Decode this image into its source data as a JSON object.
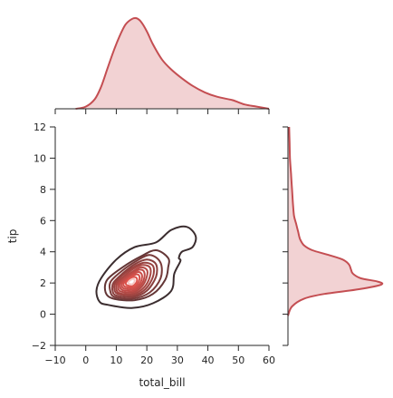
{
  "chart_data": {
    "type": "joint-kde",
    "xlabel": "total_bill",
    "ylabel": "tip",
    "xlim": [
      -10,
      60
    ],
    "ylim": [
      -2,
      12
    ],
    "xticks": [
      -10,
      0,
      10,
      20,
      30,
      40,
      50,
      60
    ],
    "yticks": [
      -2,
      0,
      2,
      4,
      6,
      8,
      10,
      12
    ],
    "grid": false,
    "colors": {
      "outer": "#3b2d2f",
      "inner": "#e8554e",
      "marginal_line": "#c44e52",
      "marginal_fill": "#f2d2d3"
    },
    "joint_kde": {
      "center": [
        15.5,
        2.3
      ],
      "levels": [
        {
          "points": [
            [
              7.2,
              0.6
            ],
            [
              15,
              0.4
            ],
            [
              22,
              0.7
            ],
            [
              28,
              1.5
            ],
            [
              29,
              2.6
            ],
            [
              31,
              3.4
            ],
            [
              30.5,
              3.6
            ],
            [
              31.5,
              4.0
            ],
            [
              35,
              4.3
            ],
            [
              36,
              5.0
            ],
            [
              33,
              5.6
            ],
            [
              28,
              5.4
            ],
            [
              23,
              4.6
            ],
            [
              16,
              4.3
            ],
            [
              10,
              3.5
            ],
            [
              5,
              2.3
            ],
            [
              3.5,
              1.5
            ],
            [
              4.5,
              0.8
            ]
          ]
        },
        {
          "points": [
            [
              9,
              1.0
            ],
            [
              16,
              0.9
            ],
            [
              22,
              1.3
            ],
            [
              26,
              2.2
            ],
            [
              27,
              3.0
            ],
            [
              27,
              3.6
            ],
            [
              23,
              4.1
            ],
            [
              18,
              3.7
            ],
            [
              12,
              3.0
            ],
            [
              7,
              2.2
            ],
            [
              6.5,
              1.4
            ]
          ]
        },
        {
          "points": [
            [
              9.5,
              1.1
            ],
            [
              15.5,
              1.0
            ],
            [
              21,
              1.4
            ],
            [
              24.5,
              2.3
            ],
            [
              24.5,
              3.3
            ],
            [
              21,
              3.8
            ],
            [
              16.5,
              3.4
            ],
            [
              12,
              2.8
            ],
            [
              8.2,
              2.1
            ],
            [
              8,
              1.5
            ]
          ]
        },
        {
          "points": [
            [
              10,
              1.2
            ],
            [
              15.5,
              1.1
            ],
            [
              20,
              1.5
            ],
            [
              23,
              2.4
            ],
            [
              23,
              3.2
            ],
            [
              20,
              3.5
            ],
            [
              16,
              3.2
            ],
            [
              12,
              2.6
            ],
            [
              9,
              2.0
            ],
            [
              8.8,
              1.5
            ]
          ]
        },
        {
          "points": [
            [
              10.5,
              1.3
            ],
            [
              15.5,
              1.2
            ],
            [
              19.5,
              1.6
            ],
            [
              22,
              2.4
            ],
            [
              22,
              3.1
            ],
            [
              19,
              3.3
            ],
            [
              15.5,
              3.0
            ],
            [
              12,
              2.5
            ],
            [
              9.6,
              2.0
            ],
            [
              9.4,
              1.6
            ]
          ]
        },
        {
          "points": [
            [
              11,
              1.35
            ],
            [
              15.5,
              1.3
            ],
            [
              19,
              1.7
            ],
            [
              21,
              2.4
            ],
            [
              21,
              3.0
            ],
            [
              18.5,
              3.15
            ],
            [
              15.5,
              2.9
            ],
            [
              12.3,
              2.4
            ],
            [
              10.2,
              2.0
            ],
            [
              10,
              1.65
            ]
          ]
        },
        {
          "points": [
            [
              11.5,
              1.45
            ],
            [
              15.5,
              1.4
            ],
            [
              18.5,
              1.8
            ],
            [
              20,
              2.4
            ],
            [
              20,
              2.85
            ],
            [
              18,
              3.0
            ],
            [
              15.5,
              2.75
            ],
            [
              12.7,
              2.35
            ],
            [
              10.8,
              2.0
            ],
            [
              10.6,
              1.7
            ]
          ]
        },
        {
          "points": [
            [
              12,
              1.55
            ],
            [
              15.5,
              1.5
            ],
            [
              18,
              1.85
            ],
            [
              19.2,
              2.35
            ],
            [
              19,
              2.75
            ],
            [
              17.5,
              2.85
            ],
            [
              15.5,
              2.65
            ],
            [
              13,
              2.3
            ],
            [
              11.3,
              2.0
            ],
            [
              11.2,
              1.75
            ]
          ]
        },
        {
          "points": [
            [
              12.5,
              1.65
            ],
            [
              15.5,
              1.6
            ],
            [
              17.5,
              1.9
            ],
            [
              18.4,
              2.3
            ],
            [
              18.2,
              2.6
            ],
            [
              17,
              2.7
            ],
            [
              15.5,
              2.55
            ],
            [
              13.4,
              2.25
            ],
            [
              11.9,
              2.0
            ],
            [
              11.8,
              1.8
            ]
          ]
        },
        {
          "points": [
            [
              13,
              1.75
            ],
            [
              15.5,
              1.7
            ],
            [
              17,
              1.95
            ],
            [
              17.6,
              2.25
            ],
            [
              17.4,
              2.5
            ],
            [
              16.5,
              2.55
            ],
            [
              15.3,
              2.45
            ],
            [
              13.8,
              2.2
            ],
            [
              12.5,
              2.0
            ],
            [
              12.4,
              1.85
            ]
          ]
        },
        {
          "points": [
            [
              13.6,
              1.85
            ],
            [
              15.3,
              1.8
            ],
            [
              16.5,
              2.0
            ],
            [
              16.8,
              2.2
            ],
            [
              16.5,
              2.35
            ],
            [
              15.5,
              2.38
            ],
            [
              14.5,
              2.3
            ],
            [
              13.4,
              2.1
            ],
            [
              13.1,
              1.95
            ]
          ]
        },
        {
          "points": [
            [
              14.2,
              1.95
            ],
            [
              15.2,
              1.92
            ],
            [
              15.9,
              2.05
            ],
            [
              16,
              2.18
            ],
            [
              15.6,
              2.26
            ],
            [
              14.9,
              2.22
            ],
            [
              14.2,
              2.12
            ],
            [
              13.9,
              2.02
            ]
          ]
        }
      ]
    },
    "marginal_x": {
      "x": [
        -3.3,
        0,
        3,
        5,
        7,
        9,
        11,
        13,
        15,
        16.5,
        18,
        20,
        22,
        25,
        28,
        31,
        35,
        39,
        43,
        48,
        52,
        56,
        60
      ],
      "density": [
        0,
        0.002,
        0.009,
        0.02,
        0.036,
        0.052,
        0.066,
        0.077,
        0.082,
        0.083,
        0.08,
        0.071,
        0.059,
        0.045,
        0.036,
        0.029,
        0.021,
        0.015,
        0.011,
        0.008,
        0.004,
        0.002,
        0
      ]
    },
    "marginal_y": {
      "y": [
        -0.1,
        0.5,
        1.0,
        1.3,
        1.6,
        1.9,
        2.1,
        2.3,
        2.6,
        2.9,
        3.2,
        3.5,
        3.8,
        4.1,
        4.4,
        4.8,
        5.3,
        5.8,
        6.3,
        7.0,
        8.0,
        9.0,
        10.0,
        11.0,
        12.0
      ],
      "density": [
        0,
        0.02,
        0.08,
        0.18,
        0.35,
        0.46,
        0.44,
        0.36,
        0.32,
        0.31,
        0.3,
        0.27,
        0.2,
        0.12,
        0.08,
        0.06,
        0.05,
        0.04,
        0.03,
        0.025,
        0.02,
        0.015,
        0.01,
        0.008,
        0.006
      ]
    }
  }
}
